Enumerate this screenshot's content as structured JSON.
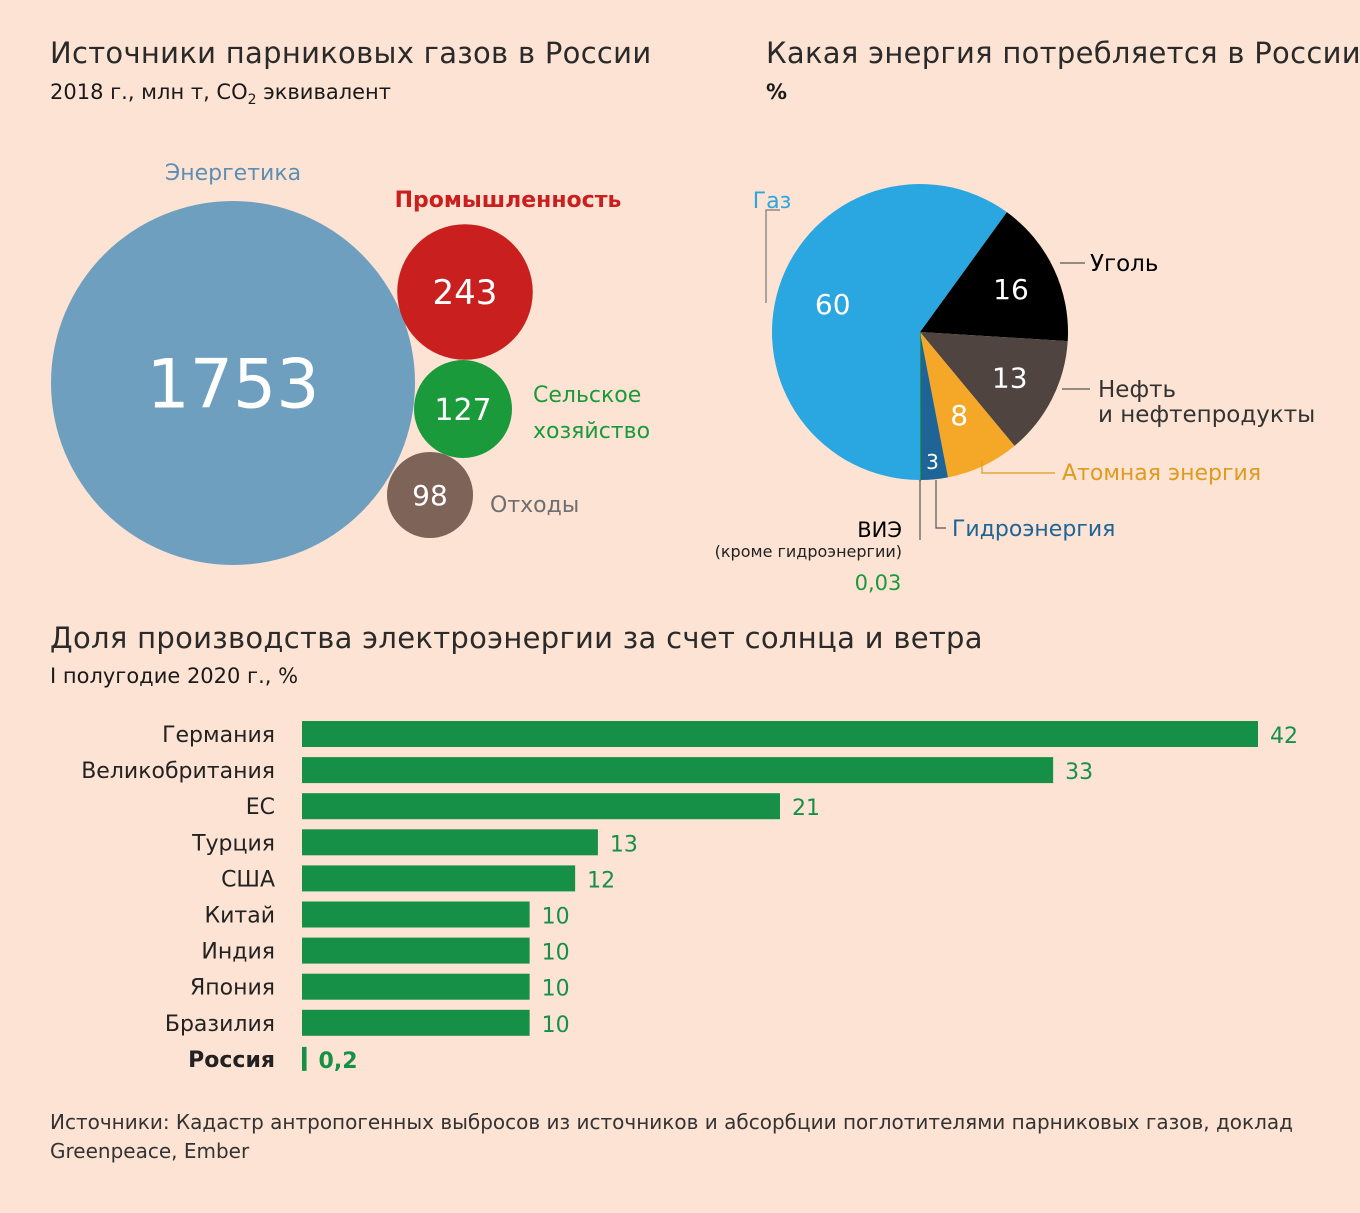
{
  "section1": {
    "title": "Источники парниковых газов в России",
    "subtitle_main": "2018 г., млн т, CO",
    "subtitle_sub": "2",
    "subtitle_tail": " эквивалент"
  },
  "section2": {
    "title": "Какая энергия потребляется в России",
    "subtitle": "%"
  },
  "section3": {
    "title": "Доля производства электроэнергии за счет солнца и ветра",
    "subtitle": "I полугодие 2020 г., %"
  },
  "source": {
    "text": "Источники: Кадастр антропогенных выбросов из источников и абсорбции поглотителями парниковых газов, доклад Greenpeace, Ember"
  },
  "chart_data": [
    {
      "type": "bubble",
      "title": "Источники парниковых газов в России",
      "categories": [
        "Энергетика",
        "Промышленность",
        "Сельское хозяйство",
        "Отходы"
      ],
      "values": [
        1753,
        243,
        127,
        98
      ],
      "label_lines": [
        [
          "Энергетика"
        ],
        [
          "Промышленность"
        ],
        [
          "Сельское",
          "хозяйство"
        ],
        [
          "Отходы"
        ]
      ],
      "value_labels": [
        "1753",
        "243",
        "127",
        "98"
      ],
      "colors": [
        "#6f9fbf",
        "#c9201f",
        "#1a9a3a",
        "#7d6358"
      ],
      "label_colors": [
        "#5c8fb3",
        "#c9201f",
        "#1a9a3a",
        "#6e6e6e"
      ]
    },
    {
      "type": "pie",
      "title": "Какая энергия потребляется в России",
      "categories": [
        "Газ",
        "Уголь",
        "Нефть и нефтепродукты",
        "Атомная энергия",
        "Гидроэнергия",
        "ВИЭ (кроме гидроэнергии)"
      ],
      "values": [
        60,
        16,
        13,
        8,
        3,
        0.03
      ],
      "value_labels": [
        "60",
        "16",
        "13",
        "8",
        "3",
        "0,03"
      ],
      "label_lines": [
        [
          "Газ"
        ],
        [
          "Уголь"
        ],
        [
          "Нефть",
          "и нефтепродукты"
        ],
        [
          "Атомная энергия"
        ],
        [
          "Гидроэнергия"
        ],
        [
          "ВИЭ"
        ]
      ],
      "note": "(кроме гидроэнергии)",
      "colors": [
        "#2aa6e0",
        "#000000",
        "#4f4440",
        "#f5a728",
        "#1e6497",
        "#1a9a3a"
      ],
      "label_colors": [
        "#2aa6e0",
        "#000000",
        "#333333",
        "#e09a1f",
        "#1e6497",
        "#000000"
      ],
      "value_label_colors": [
        "#ffffff",
        "#ffffff",
        "#ffffff",
        "#ffffff",
        "#ffffff",
        "#1a9a3a"
      ]
    },
    {
      "type": "bar",
      "orientation": "horizontal",
      "title": "Доля производства электроэнергии за счет солнца и ветра",
      "categories": [
        "Германия",
        "Великобритания",
        "ЕС",
        "Турция",
        "США",
        "Китай",
        "Индия",
        "Япония",
        "Бразилия",
        "Россия"
      ],
      "values": [
        42,
        33,
        21,
        13,
        12,
        10,
        10,
        10,
        10,
        0.2
      ],
      "value_labels": [
        "42",
        "33",
        "21",
        "13",
        "12",
        "10",
        "10",
        "10",
        "10",
        "0,2"
      ],
      "highlight": "Россия",
      "bar_color": "#169046",
      "value_color": "#169046"
    }
  ]
}
